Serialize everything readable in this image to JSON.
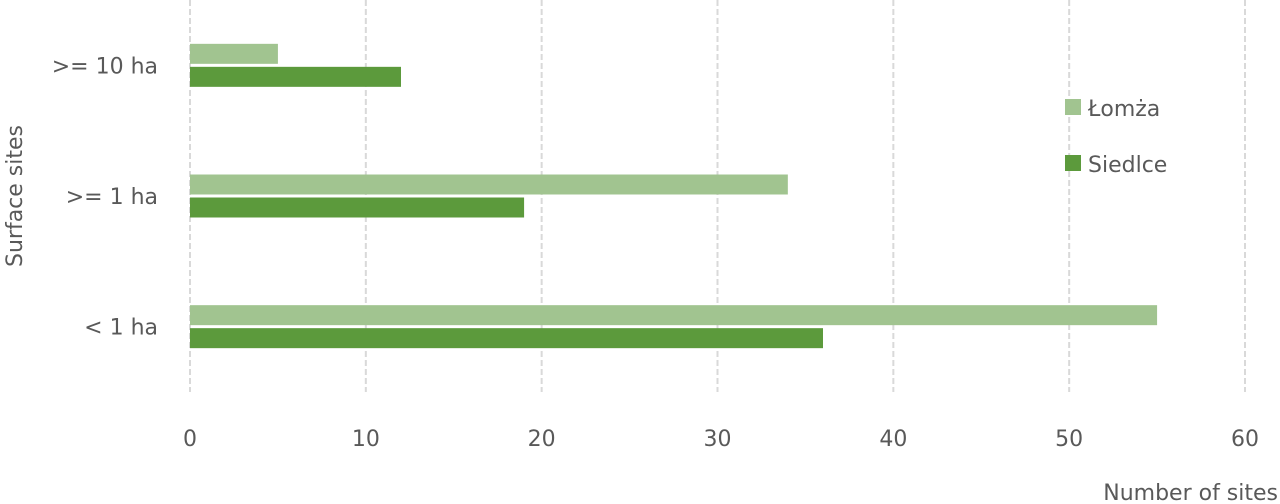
{
  "chart_data": {
    "type": "bar",
    "orientation": "horizontal",
    "categories": [
      "< 1 ha",
      ">= 1 ha",
      ">= 10 ha"
    ],
    "series": [
      {
        "name": "Łomża",
        "values": [
          55,
          34,
          5
        ],
        "color": "#a1c490"
      },
      {
        "name": "Siedlce",
        "values": [
          36,
          19,
          12
        ],
        "color": "#5c9a3c"
      }
    ],
    "xlabel": "Number of sites",
    "ylabel": "Surface sites",
    "xlim": [
      0,
      60
    ],
    "x_ticks": [
      "0",
      "10",
      "20",
      "30",
      "40",
      "50",
      "60"
    ],
    "grid": true,
    "grid_style": "dashed vertical",
    "legend_position": "right"
  }
}
